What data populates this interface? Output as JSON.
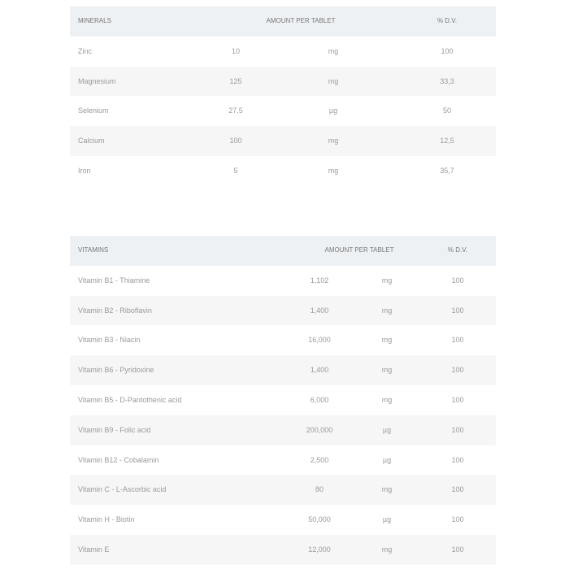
{
  "minerals": {
    "headers": {
      "name": "Minerals",
      "amount": "Amount per tablet",
      "dv": "% D.V."
    },
    "rows": [
      {
        "name": "Zinc",
        "amount": "10",
        "unit": "mg",
        "dv": "100"
      },
      {
        "name": "Magnesium",
        "amount": "125",
        "unit": "mg",
        "dv": "33,3"
      },
      {
        "name": "Selenium",
        "amount": "27,5",
        "unit": "µg",
        "dv": "50"
      },
      {
        "name": "Calcium",
        "amount": "100",
        "unit": "mg",
        "dv": "12,5"
      },
      {
        "name": "Iron",
        "amount": "5",
        "unit": "mg",
        "dv": "35,7"
      }
    ]
  },
  "vitamins": {
    "headers": {
      "name": "Vitamins",
      "amount": "Amount per tablet",
      "dv": "% D.V."
    },
    "rows": [
      {
        "name": "Vitamin B1 - Thiamine",
        "amount": "1,102",
        "unit": "mg",
        "dv": "100"
      },
      {
        "name": "Vitamin B2 - Riboflavin",
        "amount": "1,400",
        "unit": "mg",
        "dv": "100"
      },
      {
        "name": "Vitamin B3 - Niacin",
        "amount": "16,000",
        "unit": "mg",
        "dv": "100"
      },
      {
        "name": "Vitamin B6 - Pyridoxine",
        "amount": "1,400",
        "unit": "mg",
        "dv": "100"
      },
      {
        "name": "Vitamin B5 - D-Pantothenic acid",
        "amount": "6,000",
        "unit": "mg",
        "dv": "100"
      },
      {
        "name": "Vitamin B9 - Folic acid",
        "amount": "200,000",
        "unit": "µg",
        "dv": "100"
      },
      {
        "name": "Vitamin B12 - Cobalamin",
        "amount": "2,500",
        "unit": "µg",
        "dv": "100"
      },
      {
        "name": "Vitamin C - L-Ascorbic acid",
        "amount": "80",
        "unit": "mg",
        "dv": "100"
      },
      {
        "name": "Vitamin H - Biotin",
        "amount": "50,000",
        "unit": "µg",
        "dv": "100"
      },
      {
        "name": "Vitamin E",
        "amount": "12,000",
        "unit": "mg",
        "dv": "100"
      }
    ]
  }
}
